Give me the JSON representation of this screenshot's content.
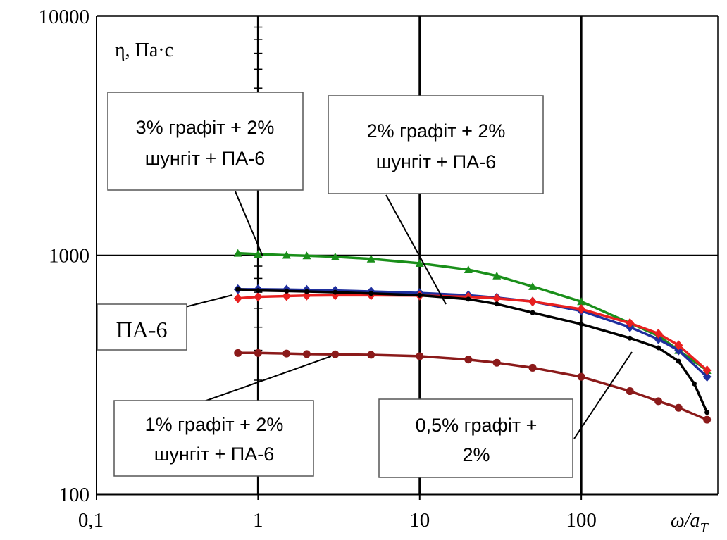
{
  "chart_data": {
    "type": "line",
    "x_scale": "log",
    "y_scale": "log",
    "xlim": [
      0.1,
      700
    ],
    "ylim": [
      100,
      10000
    ],
    "grid": true,
    "x_ticks": [
      {
        "value": 0.1,
        "label": "0,1"
      },
      {
        "value": 1,
        "label": "1"
      },
      {
        "value": 10,
        "label": "10"
      },
      {
        "value": 100,
        "label": "100"
      }
    ],
    "y_ticks": [
      {
        "value": 100,
        "label": "100"
      },
      {
        "value": 1000,
        "label": "1000"
      },
      {
        "value": 10000,
        "label": "10000"
      }
    ],
    "ylabel": "η, Па·с",
    "xlabel": "ω/a",
    "xlabel_sub": "T",
    "series": [
      {
        "name": "3% графіт + 2% шунгіт + ПА-6",
        "color": "#1a8f1a",
        "marker": "triangle",
        "x": [
          0.75,
          1,
          1.5,
          2,
          3,
          5,
          10,
          20,
          30,
          50,
          100,
          200,
          300,
          400,
          600
        ],
        "y": [
          1020,
          1010,
          1000,
          995,
          985,
          965,
          925,
          870,
          820,
          740,
          640,
          520,
          460,
          400,
          330
        ]
      },
      {
        "name": "2% графіт + 2% шунгіт + ПА-6",
        "color": "#1f2f9e",
        "marker": "diamond",
        "x": [
          0.75,
          1,
          1.5,
          2,
          3,
          5,
          10,
          20,
          30,
          50,
          100,
          200,
          300,
          400,
          600
        ],
        "y": [
          720,
          720,
          718,
          716,
          712,
          705,
          695,
          680,
          665,
          640,
          585,
          500,
          445,
          400,
          310
        ]
      },
      {
        "name": "0,5% графіт + 2%",
        "color": "#e82020",
        "marker": "diamond",
        "x": [
          0.75,
          1,
          1.5,
          2,
          3,
          5,
          10,
          20,
          30,
          50,
          100,
          200,
          300,
          400,
          600
        ],
        "y": [
          660,
          670,
          675,
          678,
          680,
          680,
          678,
          670,
          660,
          640,
          595,
          520,
          470,
          420,
          330
        ]
      },
      {
        "name": "ПА-6",
        "color": "#000000",
        "marker": "dot",
        "x": [
          0.75,
          1,
          1.5,
          2,
          3,
          5,
          10,
          20,
          30,
          50,
          100,
          200,
          300,
          400,
          500,
          600
        ],
        "y": [
          720,
          712,
          708,
          705,
          700,
          692,
          680,
          655,
          625,
          575,
          515,
          450,
          410,
          360,
          290,
          220
        ]
      },
      {
        "name": "1% графіт + 2% шунгіт + ПА-6",
        "color": "#8b1a1a",
        "marker": "circle",
        "x": [
          0.75,
          1,
          1.5,
          2,
          3,
          5,
          10,
          20,
          30,
          50,
          100,
          200,
          300,
          400,
          600
        ],
        "y": [
          390,
          390,
          388,
          386,
          385,
          383,
          378,
          366,
          355,
          338,
          310,
          270,
          245,
          230,
          205
        ]
      }
    ],
    "annotations": [
      {
        "lines": [
          "3% графіт + 2%",
          "шунгіт + ПА-6"
        ]
      },
      {
        "lines": [
          "2% графіт + 2%",
          "шунгіт + ПА-6"
        ]
      },
      {
        "lines": [
          "ПА-6"
        ]
      },
      {
        "lines": [
          "1% графіт + 2%",
          "шунгіт + ПА-6"
        ]
      },
      {
        "lines": [
          "0,5% графіт +",
          "2%"
        ]
      }
    ]
  }
}
